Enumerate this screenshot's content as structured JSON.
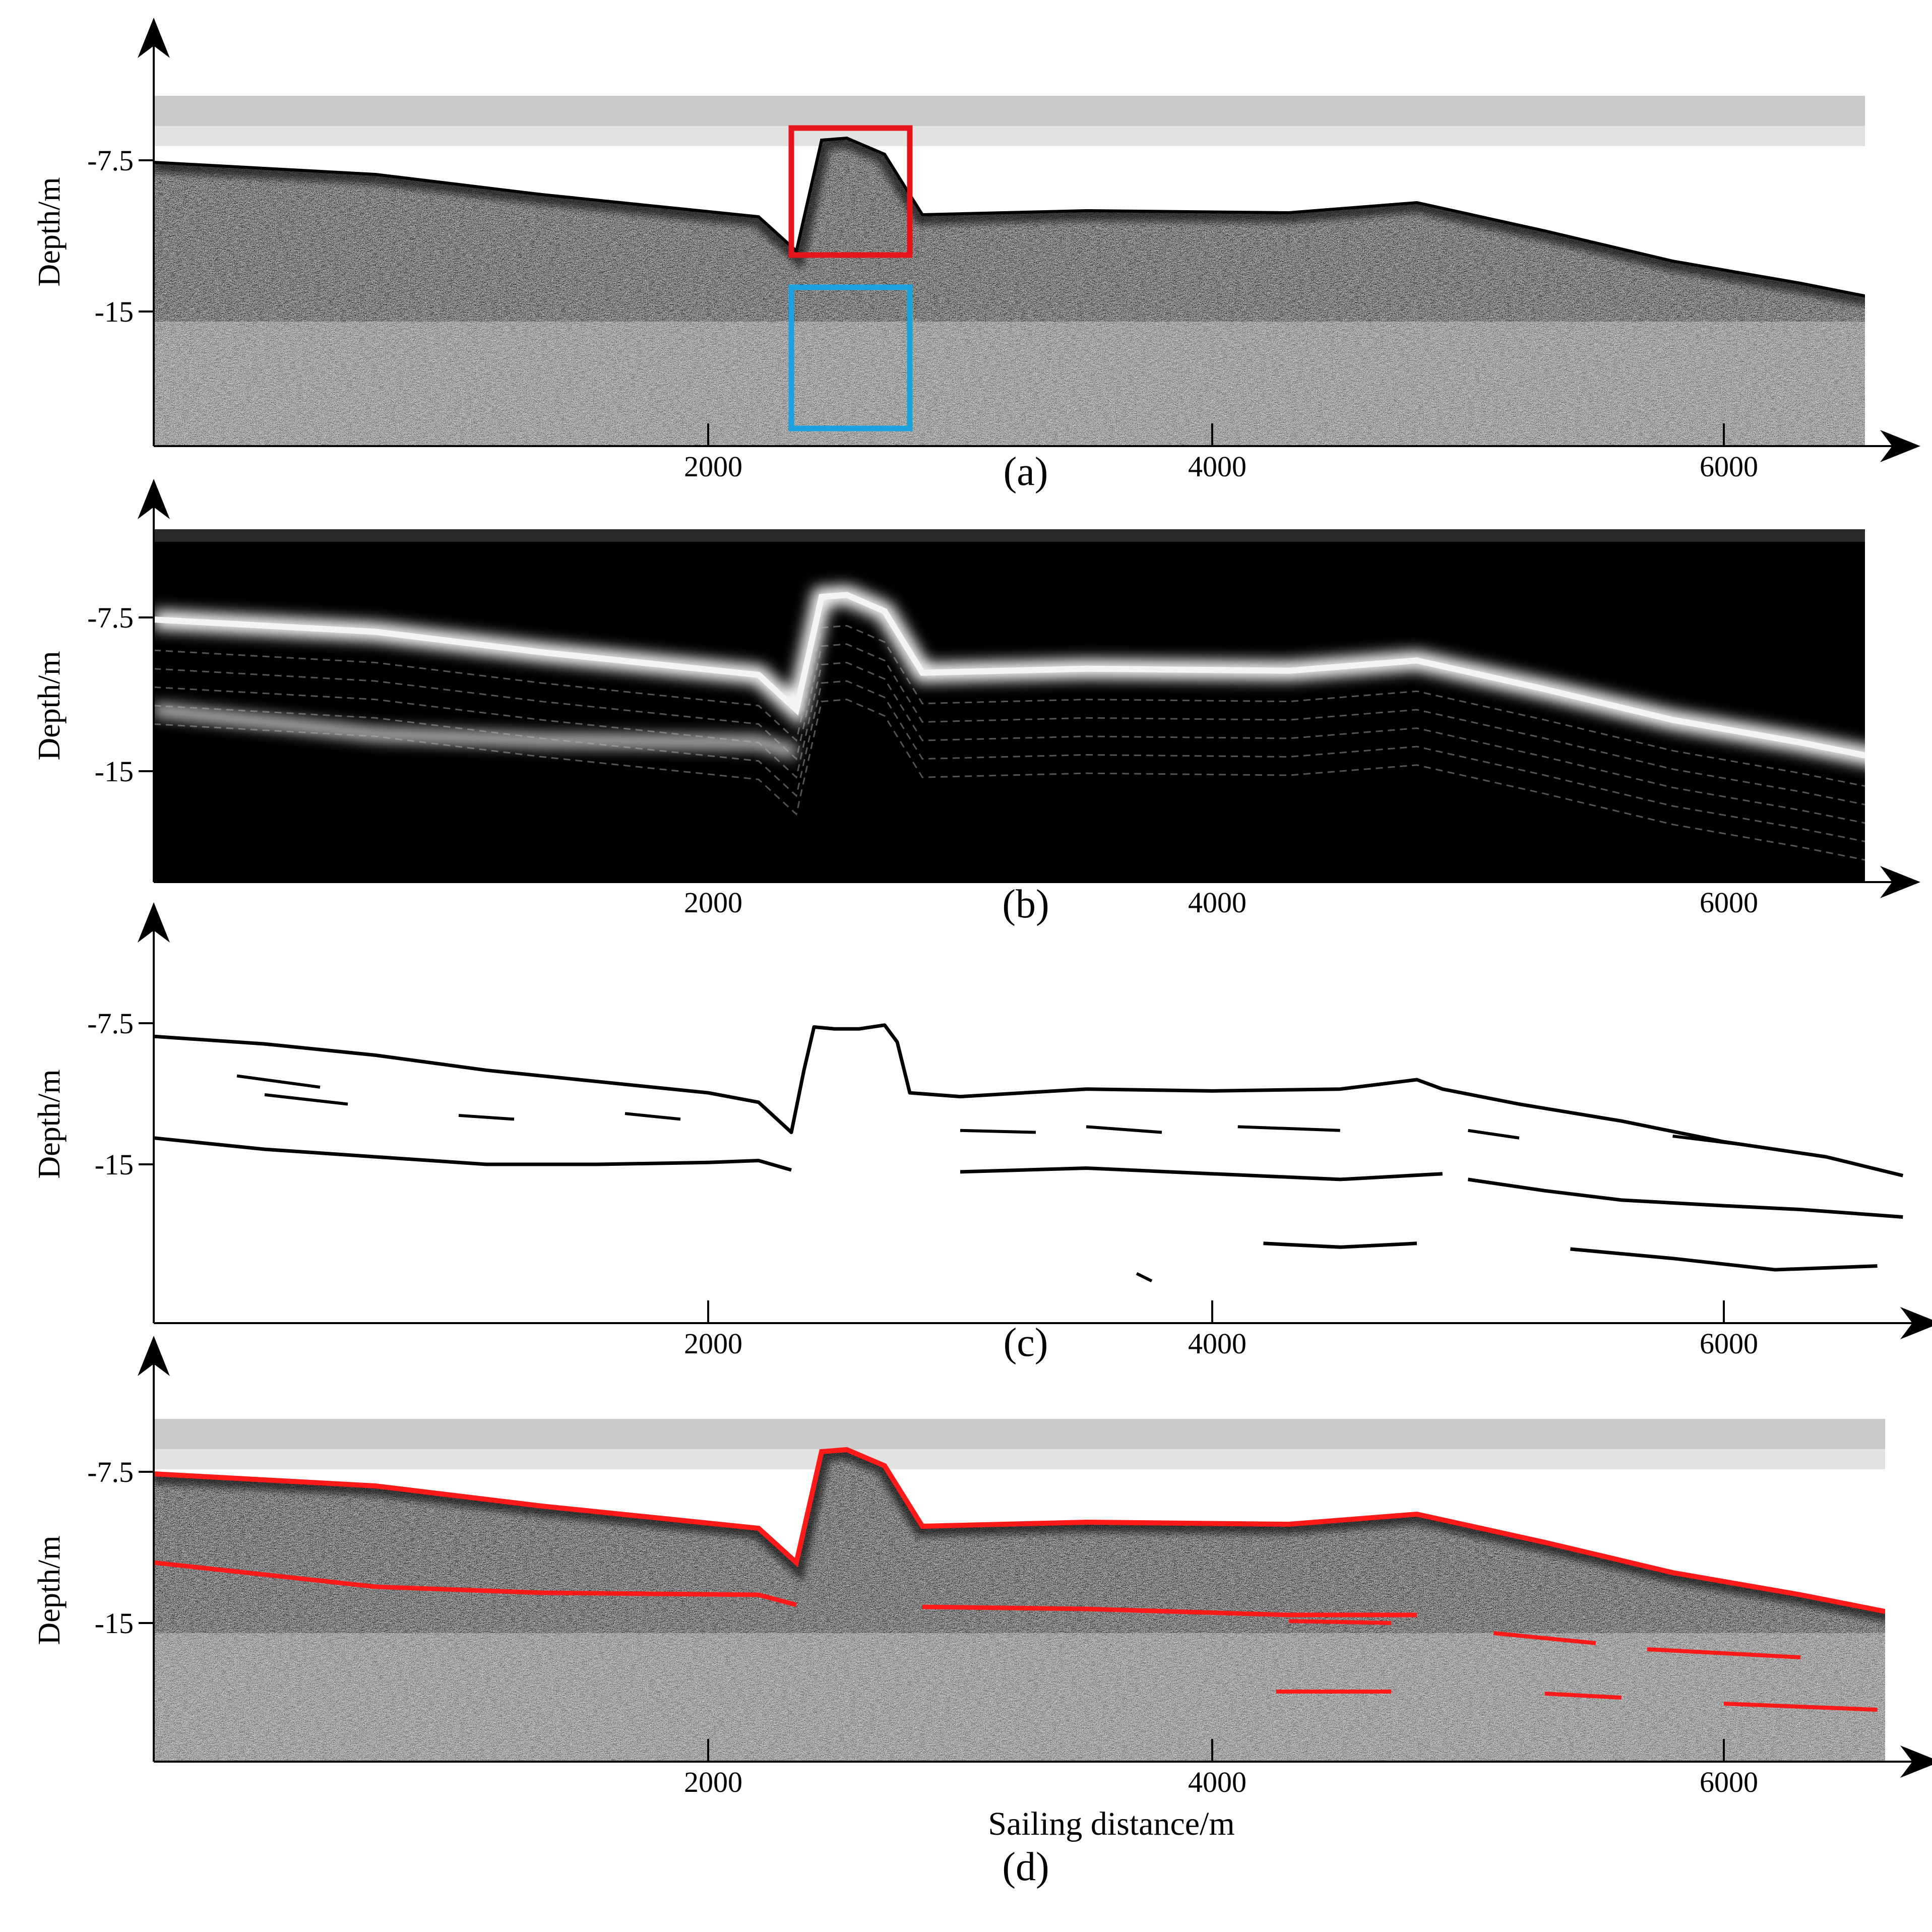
{
  "figure": {
    "xlabel": "Sailing distance/m",
    "colors": {
      "axis": "#000000",
      "highlight_red": "#e8141b",
      "highlight_blue": "#1aa3dc",
      "extracted_red": "#ff1a1a"
    }
  },
  "chart_data": [
    {
      "type": "heatmap",
      "label": "(a)",
      "ylabel": "Depth/m",
      "xlabel": "",
      "x_ticks": [
        "2000",
        "4000",
        "6000"
      ],
      "y_ticks": [
        "-7.5",
        "-15"
      ],
      "xlim": [
        0,
        6700
      ],
      "ylim": [
        -20.5,
        -4
      ],
      "style": "raw-sonar-grayscale",
      "seabed_profile": {
        "x": [
          0,
          800,
          1400,
          2200,
          2350,
          2450,
          2550,
          2700,
          2850,
          3500,
          4300,
          4800,
          5300,
          5800,
          6300,
          6700
        ],
        "y": [
          -7.6,
          -8.2,
          -9.2,
          -10.3,
          -12.0,
          -6.5,
          -6.4,
          -7.2,
          -10.2,
          -10.0,
          -10.1,
          -9.6,
          -11.0,
          -12.5,
          -13.6,
          -14.6
        ]
      },
      "annotations": [
        {
          "shape": "rectangle",
          "color": "#e8141b",
          "x_range": [
            2330,
            2800
          ],
          "y_range": [
            -5.9,
            -12.2
          ]
        },
        {
          "shape": "rectangle",
          "color": "#1aa3dc",
          "x_range": [
            2330,
            2800
          ],
          "y_range": [
            -13.8,
            -20.8
          ]
        }
      ]
    },
    {
      "type": "heatmap",
      "label": "(b)",
      "ylabel": "Depth/m",
      "xlabel": "",
      "x_ticks": [
        "2000",
        "4000",
        "6000"
      ],
      "y_ticks": [
        "-7.5",
        "-15"
      ],
      "xlim": [
        0,
        6700
      ],
      "ylim": [
        -20.5,
        -4
      ],
      "style": "enhanced-dark-background",
      "seabed_profile": {
        "x": [
          0,
          800,
          1400,
          2200,
          2350,
          2450,
          2550,
          2700,
          2850,
          3500,
          4300,
          4800,
          5300,
          5800,
          6300,
          6700
        ],
        "y": [
          -7.6,
          -8.2,
          -9.2,
          -10.3,
          -12.0,
          -6.5,
          -6.4,
          -7.2,
          -10.2,
          -10.0,
          -10.1,
          -9.6,
          -11.0,
          -12.5,
          -13.6,
          -14.6
        ]
      },
      "reflector_profile": {
        "x": [
          0,
          800,
          1400,
          2200,
          2350
        ],
        "y": [
          -12.0,
          -13.2,
          -13.5,
          -13.6,
          -14.1
        ]
      }
    },
    {
      "type": "line",
      "label": "(c)",
      "ylabel": "Depth/m",
      "xlabel": "",
      "x_ticks": [
        "2000",
        "4000",
        "6000"
      ],
      "y_ticks": [
        "-7.5",
        "-15"
      ],
      "xlim": [
        0,
        6700
      ],
      "ylim": [
        -22.5,
        -3.5
      ],
      "series": [
        {
          "x": [
            0,
            400,
            800,
            1200,
            1600,
            2000,
            2200,
            2330,
            2380,
            2420,
            2500,
            2600,
            2700,
            2750,
            2800,
            3000,
            3500,
            4000,
            4500,
            4800,
            4900,
            5200,
            5600,
            6000,
            6400,
            6700
          ],
          "y": [
            -8.2,
            -8.6,
            -9.2,
            -10.0,
            -10.6,
            -11.2,
            -11.7,
            -13.3,
            -10.0,
            -7.7,
            -7.8,
            -7.8,
            -7.6,
            -8.5,
            -11.2,
            -11.4,
            -11.0,
            -11.1,
            -11.0,
            -10.5,
            -11.0,
            -11.8,
            -12.7,
            -13.8,
            -14.6,
            -15.6
          ]
        },
        {
          "x": [
            0,
            400,
            800,
            1200,
            1600,
            2000,
            2200,
            2330
          ],
          "y": [
            -13.6,
            -14.2,
            -14.6,
            -15.0,
            -15.0,
            -14.9,
            -14.8,
            -15.3
          ]
        },
        {
          "x": [
            3000,
            3500,
            4000,
            4500,
            4900
          ],
          "y": [
            -15.4,
            -15.2,
            -15.5,
            -15.8,
            -15.5
          ]
        },
        {
          "x": [
            5000,
            5300,
            5600,
            6000,
            6300,
            6700
          ],
          "y": [
            -15.8,
            -16.4,
            -16.9,
            -17.2,
            -17.4,
            -17.8
          ]
        },
        {
          "x": [
            4200,
            4500,
            4800
          ],
          "y": [
            -19.2,
            -19.4,
            -19.2
          ]
        },
        {
          "x": [
            5400,
            5800,
            6200,
            6600
          ],
          "y": [
            -19.5,
            -20.0,
            -20.6,
            -20.4
          ]
        }
      ]
    },
    {
      "type": "heatmap",
      "label": "(d)",
      "ylabel": "Depth/m",
      "xlabel": "Sailing distance/m",
      "x_ticks": [
        "2000",
        "4000",
        "6000"
      ],
      "y_ticks": [
        "-7.5",
        "-15"
      ],
      "xlim": [
        0,
        6700
      ],
      "ylim": [
        -20.5,
        -4
      ],
      "style": "raw-sonar-grayscale-with-red-overlay",
      "seabed_profile": {
        "x": [
          0,
          800,
          1400,
          2200,
          2350,
          2450,
          2550,
          2700,
          2850,
          3500,
          4300,
          4800,
          5300,
          5800,
          6300,
          6700
        ],
        "y": [
          -7.6,
          -8.2,
          -9.2,
          -10.3,
          -12.0,
          -6.5,
          -6.4,
          -7.2,
          -10.2,
          -10.0,
          -10.1,
          -9.6,
          -11.0,
          -12.5,
          -13.6,
          -14.6
        ]
      },
      "reflector_profile": {
        "x": [
          0,
          800,
          1400,
          2200,
          2350
        ],
        "y": [
          -12.0,
          -13.2,
          -13.5,
          -13.6,
          -14.1
        ]
      },
      "reflector_profile_2": {
        "x": [
          2850,
          3500,
          4300,
          4800
        ],
        "y": [
          -14.2,
          -14.3,
          -14.6,
          -14.6
        ]
      }
    }
  ]
}
